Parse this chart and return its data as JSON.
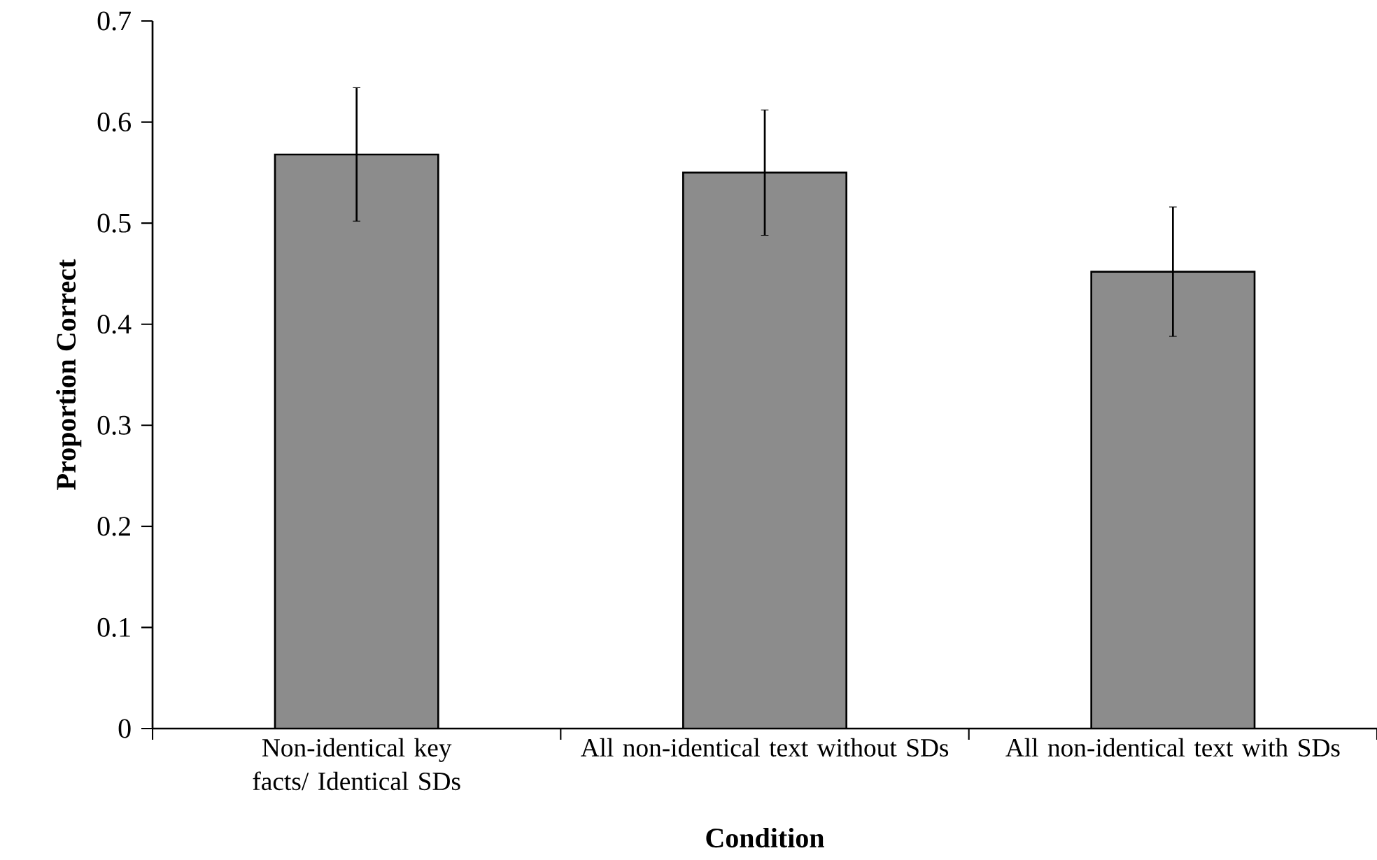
{
  "chart_data": {
    "type": "bar",
    "xlabel": "Condition",
    "ylabel": "Proportion Correct",
    "categories": [
      "Non-identical key facts/ Identical SDs",
      "All non-identical text without SDs",
      "All non-identical text with SDs"
    ],
    "values": [
      0.568,
      0.55,
      0.452
    ],
    "errors": [
      0.066,
      0.062,
      0.064
    ],
    "color": "#8c8c8c",
    "ylim": [
      0,
      0.7
    ],
    "yticks": [
      0,
      0.1,
      0.2,
      0.3,
      0.4,
      0.5,
      0.6,
      0.7
    ],
    "grid": false
  }
}
